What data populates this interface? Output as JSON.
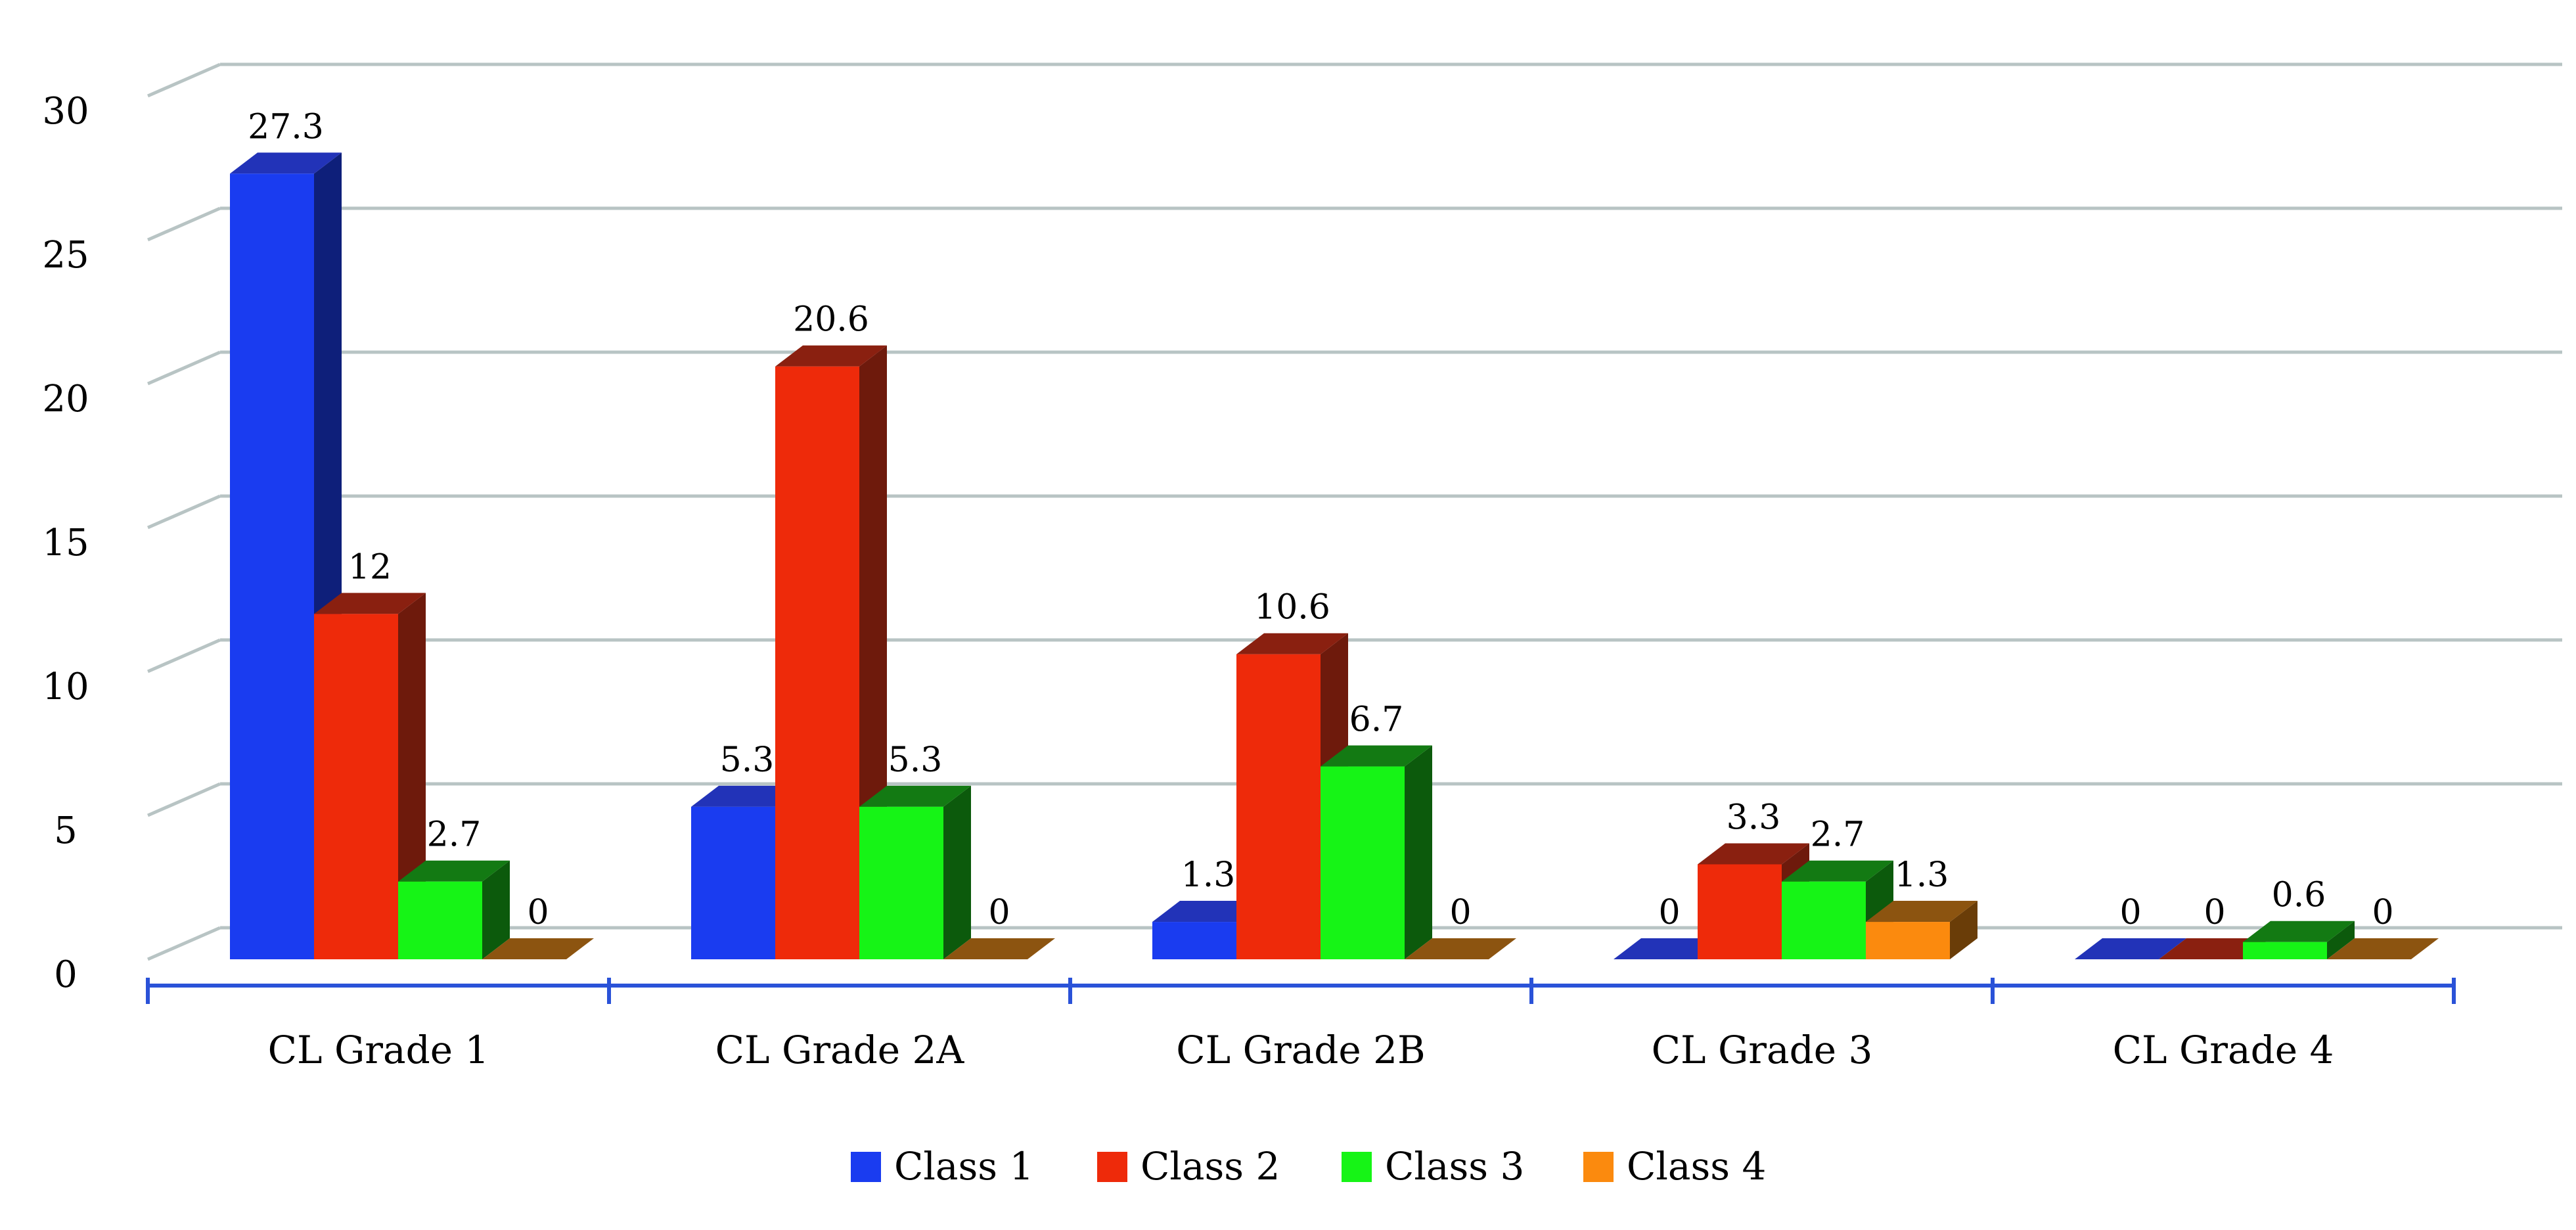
{
  "chart_data": {
    "type": "bar",
    "title": "",
    "xlabel": "",
    "ylabel": "",
    "categories": [
      "CL Grade 1",
      "CL Grade 2A",
      "CL Grade 2B",
      "CL Grade 3",
      "CL Grade 4"
    ],
    "series": [
      {
        "name": "Class 1",
        "values": [
          27.3,
          5.3,
          1.3,
          0,
          0
        ],
        "labels": [
          "27.3",
          "5.3",
          "1.3",
          "0",
          "0"
        ],
        "color": "#1a3cf0",
        "side_color": "#0e1f7a",
        "top_color": "#2233b8"
      },
      {
        "name": "Class 2",
        "values": [
          12,
          20.6,
          10.6,
          3.3,
          0
        ],
        "labels": [
          "12",
          "20.6",
          "10.6",
          "3.3",
          "0"
        ],
        "color": "#ee2a0a",
        "side_color": "#6e1a0c",
        "top_color": "#8a2010"
      },
      {
        "name": "Class 3",
        "values": [
          2.7,
          5.3,
          6.7,
          2.7,
          0.6
        ],
        "labels": [
          "2.7",
          "5.3",
          "6.7",
          "2.7",
          "0.6"
        ],
        "color": "#16f416",
        "side_color": "#0c5a0c",
        "top_color": "#137a13"
      },
      {
        "name": "Class 4",
        "values": [
          0,
          0,
          0,
          1.3,
          0
        ],
        "labels": [
          "0",
          "0",
          "0",
          "1.3",
          "0"
        ],
        "color": "#fb8a0e",
        "side_color": "#6a3d08",
        "top_color": "#8c5410"
      }
    ],
    "ylim": [
      0,
      30
    ],
    "yticks": [
      0,
      5,
      10,
      15,
      20,
      25,
      30
    ],
    "ytick_labels": [
      "0",
      "5",
      "10",
      "15",
      "20",
      "25",
      "30"
    ],
    "grid": true,
    "three_d": true,
    "legend_position": "bottom",
    "colors": {
      "grid": "#b8c4c4",
      "axis": "#2a52d8"
    }
  }
}
